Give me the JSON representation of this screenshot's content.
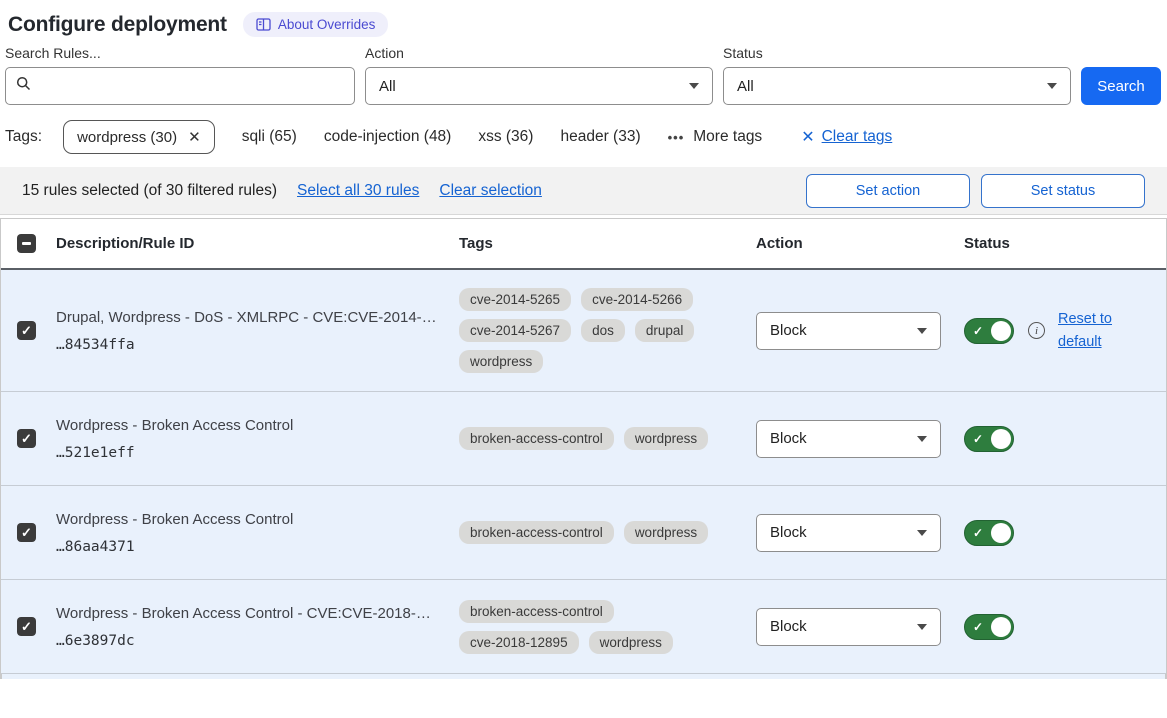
{
  "page": {
    "title": "Configure deployment",
    "about_badge": "About Overrides"
  },
  "filters": {
    "search_label": "Search Rules...",
    "search_value": "",
    "action_label": "Action",
    "action_value": "All",
    "status_label": "Status",
    "status_value": "All",
    "search_button_label": "Search"
  },
  "tags_bar": {
    "label": "Tags:",
    "selected_tag": "wordpress (30)",
    "available_tags": [
      "sqli (65)",
      "code-injection (48)",
      "xss (36)",
      "header (33)"
    ],
    "more_tags_label": "More tags",
    "clear_tags_label": "Clear tags"
  },
  "selection_bar": {
    "summary": "15 rules selected (of 30 filtered rules)",
    "select_all_label": "Select all 30 rules",
    "clear_selection_label": "Clear selection",
    "set_action_label": "Set action",
    "set_status_label": "Set status"
  },
  "table": {
    "columns": {
      "description": "Description/Rule ID",
      "tags": "Tags",
      "action": "Action",
      "status": "Status"
    },
    "rows": [
      {
        "checked": true,
        "description": "Drupal, Wordpress - DoS - XMLRPC - CVE:CVE-2014-…",
        "rule_id": "…84534ffa",
        "tags": [
          "cve-2014-5265",
          "cve-2014-5266",
          "cve-2014-5267",
          "dos",
          "drupal",
          "wordpress"
        ],
        "action": "Block",
        "status_enabled": true,
        "reset_link": "Reset to default"
      },
      {
        "checked": true,
        "description": "Wordpress - Broken Access Control",
        "rule_id": "…521e1eff",
        "tags": [
          "broken-access-control",
          "wordpress"
        ],
        "action": "Block",
        "status_enabled": true,
        "reset_link": null
      },
      {
        "checked": true,
        "description": "Wordpress - Broken Access Control",
        "rule_id": "…86aa4371",
        "tags": [
          "broken-access-control",
          "wordpress"
        ],
        "action": "Block",
        "status_enabled": true,
        "reset_link": null
      },
      {
        "checked": true,
        "description": "Wordpress - Broken Access Control - CVE:CVE-2018-…",
        "rule_id": "…6e3897dc",
        "tags": [
          "broken-access-control",
          "cve-2018-12895",
          "wordpress"
        ],
        "action": "Block",
        "status_enabled": true,
        "reset_link": null
      }
    ]
  },
  "colors": {
    "accent_blue": "#1669f2",
    "link_blue": "#1563d2",
    "toggle_green": "#2e7d3e",
    "selected_row_bg": "#e9f1fc",
    "badge_purple": "#4a4ad1",
    "badge_bg": "#efeffb"
  }
}
